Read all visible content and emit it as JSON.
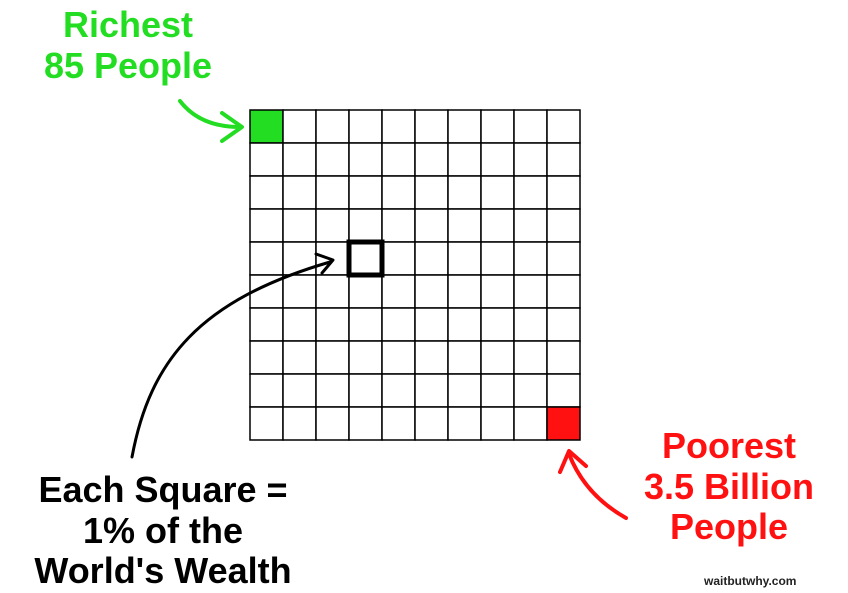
{
  "richest_label": {
    "line1": "Richest",
    "line2": "85 People",
    "color": "#22dd22"
  },
  "poorest_label": {
    "line1": "Poorest",
    "line2": "3.5 Billion",
    "line3": "People",
    "color": "#ff1111"
  },
  "legend_label": {
    "line1": "Each Square =",
    "line2": "1% of the",
    "line3": "World's Wealth",
    "color": "#000000"
  },
  "credit": "waitbutwhy.com",
  "grid": {
    "rows": 10,
    "cols": 10,
    "highlighted": [
      {
        "row": 0,
        "col": 0,
        "fill": "#22dd22"
      },
      {
        "row": 9,
        "col": 9,
        "fill": "#ff1111"
      }
    ],
    "emphasized": {
      "row": 4,
      "col": 3
    }
  }
}
